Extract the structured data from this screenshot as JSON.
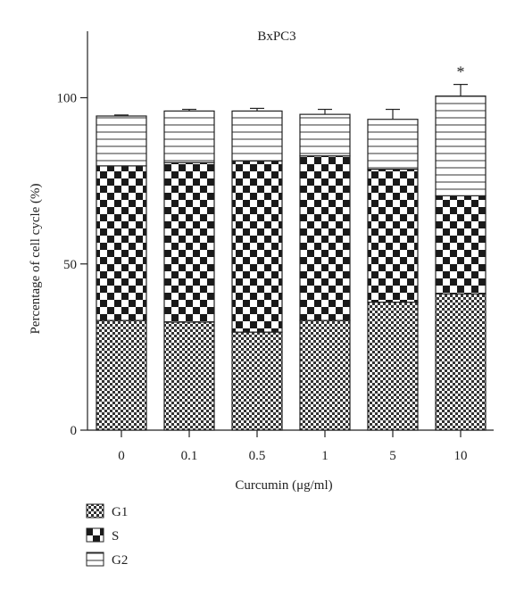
{
  "chart_data": {
    "type": "bar",
    "stacked": true,
    "title": "BxPC3",
    "xlabel": "Curcumin (μg/ml)",
    "ylabel": "Percentage of cell cycle (%)",
    "categories": [
      "0",
      "0.1",
      "0.5",
      "1",
      "5",
      "10"
    ],
    "ylim": [
      0,
      120
    ],
    "yticks": [
      0,
      50,
      100
    ],
    "grid": false,
    "legend_position": "bottom-left",
    "series": [
      {
        "name": "G1",
        "pattern": "fine-checker",
        "values": [
          33.0,
          32.5,
          29.5,
          33.0,
          38.5,
          41.0
        ],
        "error": [
          0.8,
          1.0,
          2.0,
          2.5,
          1.5,
          3.5
        ]
      },
      {
        "name": "S",
        "pattern": "coarse-checker",
        "values": [
          46.5,
          48.0,
          51.5,
          49.5,
          40.0,
          29.5
        ],
        "error": [
          1.0,
          2.0,
          2.5,
          2.5,
          1.5,
          1.5
        ]
      },
      {
        "name": "G2",
        "pattern": "horizontal-lines",
        "values": [
          15.0,
          15.5,
          15.0,
          12.5,
          15.0,
          30.0
        ],
        "error": [
          0.3,
          0.5,
          0.8,
          1.5,
          3.0,
          3.5
        ]
      }
    ],
    "annotations": [
      {
        "category": "10",
        "text": "*"
      }
    ],
    "colors": {
      "ink": "#222222",
      "background": "#ffffff"
    }
  }
}
